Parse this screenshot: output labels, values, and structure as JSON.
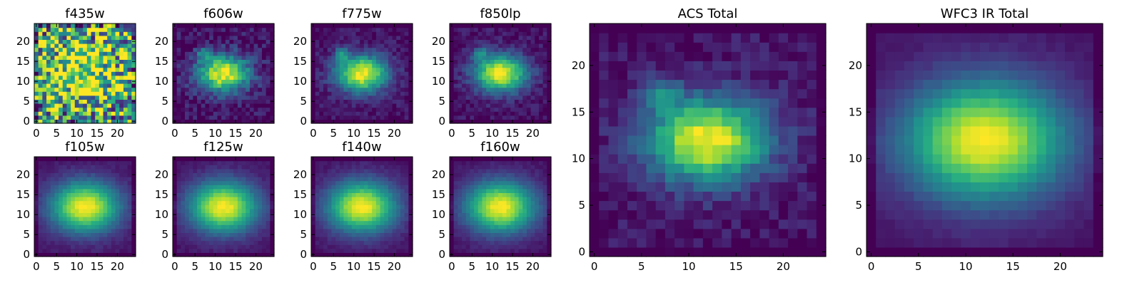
{
  "figure": {
    "background": "#ffffff"
  },
  "colormap": {
    "name": "viridis",
    "stops": [
      "#440154",
      "#472c7a",
      "#3b518b",
      "#2c718e",
      "#21908d",
      "#27ad81",
      "#5cc863",
      "#aadc32",
      "#fde725"
    ]
  },
  "chart_data": [
    {
      "id": "f435w",
      "type": "heatmap",
      "title": "f435w",
      "grid": false,
      "xlim": [
        0,
        24
      ],
      "ylim": [
        0,
        24
      ],
      "shape": [
        25,
        25
      ],
      "xticks": [
        0,
        5,
        10,
        15,
        20
      ],
      "yticks": [
        0,
        5,
        10,
        15,
        20
      ],
      "pattern": {
        "center": [
          12,
          12
        ],
        "sigma": [
          6.0,
          5.0
        ],
        "noise": 0.55,
        "floor": 0.55,
        "bright_knot": [
          7,
          17
        ]
      }
    },
    {
      "id": "f606w",
      "type": "heatmap",
      "title": "f606w",
      "grid": false,
      "xlim": [
        0,
        24
      ],
      "ylim": [
        0,
        24
      ],
      "shape": [
        25,
        25
      ],
      "xticks": [
        0,
        5,
        10,
        15,
        20
      ],
      "yticks": [
        0,
        5,
        10,
        15,
        20
      ],
      "pattern": {
        "center": [
          12,
          12
        ],
        "sigma": [
          4.5,
          3.2
        ],
        "noise": 0.12,
        "floor": 0.05,
        "bright_knot": [
          7,
          17
        ]
      }
    },
    {
      "id": "f775w",
      "type": "heatmap",
      "title": "f775w",
      "grid": false,
      "xlim": [
        0,
        24
      ],
      "ylim": [
        0,
        24
      ],
      "shape": [
        25,
        25
      ],
      "xticks": [
        0,
        5,
        10,
        15,
        20
      ],
      "yticks": [
        0,
        5,
        10,
        15,
        20
      ],
      "pattern": {
        "center": [
          12,
          12
        ],
        "sigma": [
          4.5,
          3.2
        ],
        "noise": 0.08,
        "floor": 0.05,
        "bright_knot": [
          7,
          17
        ]
      }
    },
    {
      "id": "f850lp",
      "type": "heatmap",
      "title": "f850lp",
      "grid": false,
      "xlim": [
        0,
        24
      ],
      "ylim": [
        0,
        24
      ],
      "shape": [
        25,
        25
      ],
      "xticks": [
        0,
        5,
        10,
        15,
        20
      ],
      "yticks": [
        0,
        5,
        10,
        15,
        20
      ],
      "pattern": {
        "center": [
          12,
          12
        ],
        "sigma": [
          4.5,
          3.2
        ],
        "noise": 0.08,
        "floor": 0.05,
        "bright_knot": [
          7,
          17
        ]
      }
    },
    {
      "id": "f105w",
      "type": "heatmap",
      "title": "f105w",
      "grid": false,
      "xlim": [
        0,
        24
      ],
      "ylim": [
        0,
        24
      ],
      "shape": [
        25,
        25
      ],
      "xticks": [
        0,
        5,
        10,
        15,
        20
      ],
      "yticks": [
        0,
        5,
        10,
        15,
        20
      ],
      "pattern": {
        "center": [
          12,
          12
        ],
        "sigma": [
          6.0,
          4.5
        ],
        "noise": 0.03,
        "floor": 0.05,
        "bright_knot": null
      }
    },
    {
      "id": "f125w",
      "type": "heatmap",
      "title": "f125w",
      "grid": false,
      "xlim": [
        0,
        24
      ],
      "ylim": [
        0,
        24
      ],
      "shape": [
        25,
        25
      ],
      "xticks": [
        0,
        5,
        10,
        15,
        20
      ],
      "yticks": [
        0,
        5,
        10,
        15,
        20
      ],
      "pattern": {
        "center": [
          12,
          12
        ],
        "sigma": [
          6.0,
          4.5
        ],
        "noise": 0.03,
        "floor": 0.05,
        "bright_knot": null
      }
    },
    {
      "id": "f140w",
      "type": "heatmap",
      "title": "f140w",
      "grid": false,
      "xlim": [
        0,
        24
      ],
      "ylim": [
        0,
        24
      ],
      "shape": [
        25,
        25
      ],
      "xticks": [
        0,
        5,
        10,
        15,
        20
      ],
      "yticks": [
        0,
        5,
        10,
        15,
        20
      ],
      "pattern": {
        "center": [
          12,
          12
        ],
        "sigma": [
          6.0,
          4.5
        ],
        "noise": 0.03,
        "floor": 0.05,
        "bright_knot": null
      }
    },
    {
      "id": "f160w",
      "type": "heatmap",
      "title": "f160w",
      "grid": false,
      "xlim": [
        0,
        24
      ],
      "ylim": [
        0,
        24
      ],
      "shape": [
        25,
        25
      ],
      "xticks": [
        0,
        5,
        10,
        15,
        20
      ],
      "yticks": [
        0,
        5,
        10,
        15,
        20
      ],
      "pattern": {
        "center": [
          12,
          12
        ],
        "sigma": [
          6.0,
          4.5
        ],
        "noise": 0.03,
        "floor": 0.05,
        "bright_knot": null
      }
    },
    {
      "id": "acs-total",
      "type": "heatmap",
      "title": "ACS Total",
      "grid": false,
      "xlim": [
        0,
        24
      ],
      "ylim": [
        0,
        24
      ],
      "shape": [
        25,
        25
      ],
      "xticks": [
        0,
        5,
        10,
        15,
        20
      ],
      "yticks": [
        0,
        5,
        10,
        15,
        20
      ],
      "pattern": {
        "center": [
          12,
          12
        ],
        "sigma": [
          4.5,
          3.2
        ],
        "noise": 0.08,
        "floor": 0.05,
        "bright_knot": [
          7,
          17
        ]
      }
    },
    {
      "id": "wfc3-ir-total",
      "type": "heatmap",
      "title": "WFC3 IR Total",
      "grid": false,
      "xlim": [
        0,
        24
      ],
      "ylim": [
        0,
        24
      ],
      "shape": [
        25,
        25
      ],
      "xticks": [
        0,
        5,
        10,
        15,
        20
      ],
      "yticks": [
        0,
        5,
        10,
        15,
        20
      ],
      "pattern": {
        "center": [
          12,
          12
        ],
        "sigma": [
          6.0,
          4.5
        ],
        "noise": 0.02,
        "floor": 0.05,
        "bright_knot": null
      }
    }
  ]
}
